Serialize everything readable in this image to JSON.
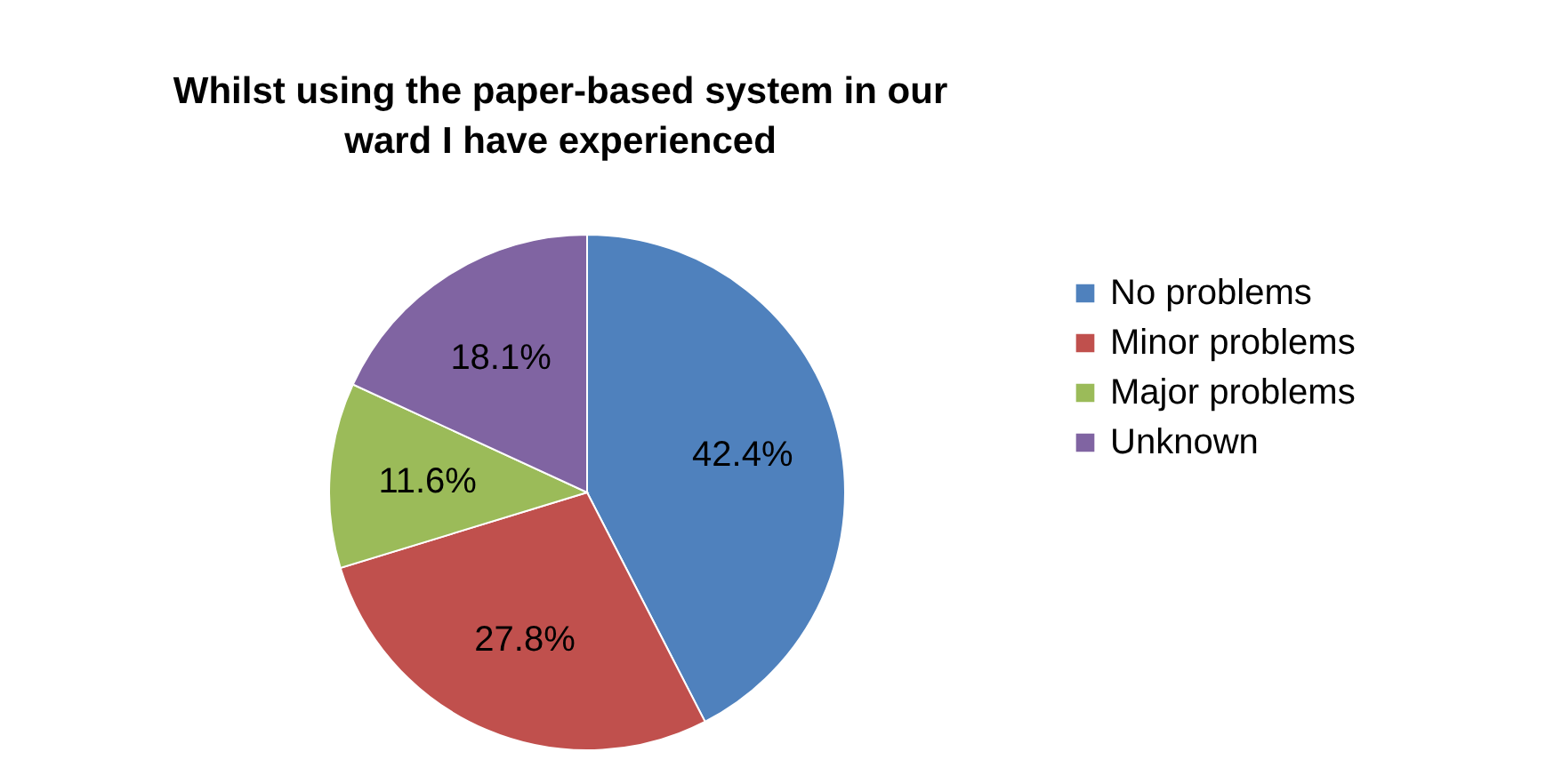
{
  "chart_data": {
    "type": "pie",
    "title": "Whilst using the paper-based system in our ward I have experienced",
    "categories": [
      "No problems",
      "Minor problems",
      "Major problems",
      "Unknown"
    ],
    "values": [
      42.4,
      27.8,
      11.6,
      18.1
    ],
    "colors": [
      "#4f81bd",
      "#c0504d",
      "#9bbb59",
      "#8064a2"
    ],
    "value_labels": [
      "42.4%",
      "27.8%",
      "11.6%",
      "18.1%"
    ],
    "legend": "right"
  }
}
